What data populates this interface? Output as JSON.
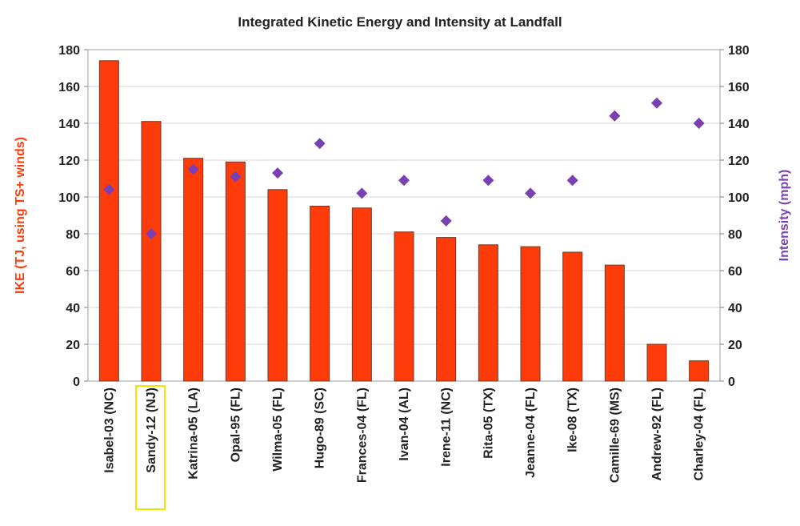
{
  "chart_data": {
    "type": "bar",
    "title": "Integrated Kinetic Energy and Intensity at Landfall",
    "xlabel": "",
    "ylabel": "IKE (TJ, using TS+ winds)",
    "y2label": "Intensity (mph)",
    "ylim": [
      0,
      180
    ],
    "y2lim": [
      0,
      180
    ],
    "yticks": [
      0,
      20,
      40,
      60,
      80,
      100,
      120,
      140,
      160,
      180
    ],
    "y2ticks": [
      0,
      20,
      40,
      60,
      80,
      100,
      120,
      140,
      160,
      180
    ],
    "grid": true,
    "highlighted_category": "Sandy-12 (NJ)",
    "categories": [
      "Isabel-03 (NC)",
      "Sandy-12 (NJ)",
      "Katrina-05 (LA)",
      "Opal-95 (FL)",
      "Wilma-05 (FL)",
      "Hugo-89 (SC)",
      "Frances-04 (FL)",
      "Ivan-04 (AL)",
      "Irene-11 (NC)",
      "Rita-05 (TX)",
      "Jeanne-04 (FL)",
      "Ike-08 (TX)",
      "Camille-69 (MS)",
      "Andrew-92 (FL)",
      "Charley-04 (FL)"
    ],
    "series": [
      {
        "type": "bar",
        "axis": "left",
        "color": "#ff3b0a",
        "values": [
          174,
          141,
          121,
          119,
          104,
          95,
          94,
          81,
          78,
          74,
          73,
          70,
          63,
          20,
          11
        ]
      },
      {
        "type": "scatter",
        "axis": "right",
        "marker": "diamond",
        "color": "#7a3fb0",
        "values": [
          104,
          80,
          115,
          111,
          113,
          129,
          102,
          109,
          87,
          109,
          102,
          109,
          144,
          151,
          140
        ]
      }
    ]
  }
}
